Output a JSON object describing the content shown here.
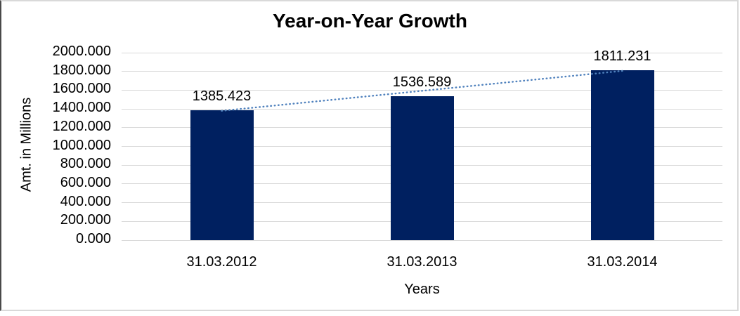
{
  "chart_data": {
    "type": "bar",
    "title": "Year-on-Year Growth",
    "xlabel": "Years",
    "ylabel": "Amt. in Millions",
    "categories": [
      "31.03.2012",
      "31.03.2013",
      "31.03.2014"
    ],
    "values": [
      1385.423,
      1536.589,
      1811.231
    ],
    "data_labels": [
      "1385.423",
      "1536.589",
      "1811.231"
    ],
    "ylim": [
      0,
      2000
    ],
    "ytick_step": 200,
    "ytick_labels": [
      "0.000",
      "200.000",
      "400.000",
      "600.000",
      "800.000",
      "1000.000",
      "1200.000",
      "1400.000",
      "1600.000",
      "1800.000",
      "2000.000"
    ],
    "grid": "horizontal",
    "legend": "none",
    "trendline": {
      "type": "linear",
      "style": "dotted"
    },
    "colors": {
      "bar": "#002060",
      "trendline": "#4F81BD",
      "gridline": "#D9D9D9",
      "text": "#000000",
      "frame": "#D9D9D9",
      "frame_left": "#4A4A4A",
      "background": "#FFFFFF"
    }
  }
}
